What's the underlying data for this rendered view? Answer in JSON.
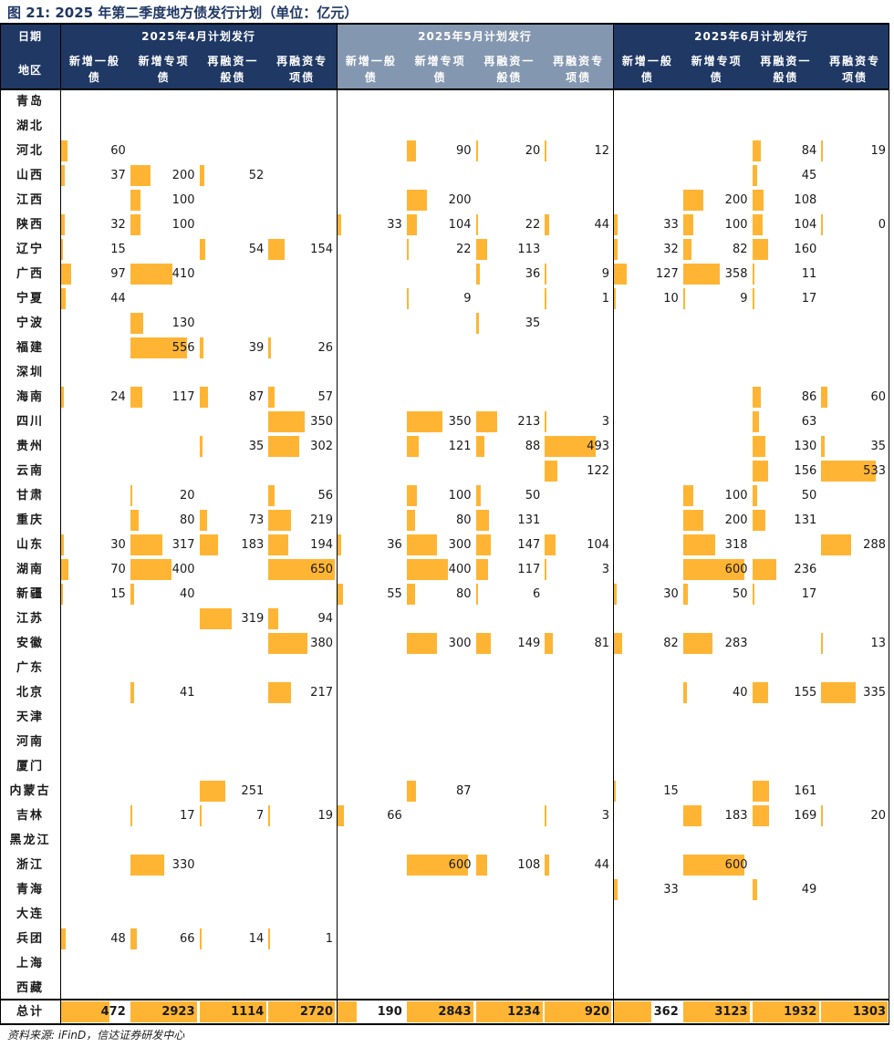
{
  "title": "图 21:  2025 年第二季度地方债发行计划（单位：亿元）",
  "source": "资料来源: iFinD，信达证券研发中心",
  "chart_data": {
    "type": "table",
    "header_date_label": "日期",
    "header_region_label": "地区",
    "total_label": "总计",
    "months": [
      "2025年4月计划发行",
      "2025年5月计划发行",
      "2025年6月计划发行"
    ],
    "highlighted_month": 1,
    "columns": [
      "新增一般债",
      "新增专项债",
      "再融资一般债",
      "再融资专项债"
    ],
    "columns_line1": [
      "新增一般",
      "新增专项",
      "再融资一",
      "再融资专"
    ],
    "columns_line2": [
      "债",
      "债",
      "般债",
      "项债"
    ],
    "regions": [
      "青岛",
      "湖北",
      "河北",
      "山西",
      "江西",
      "陕西",
      "辽宁",
      "广西",
      "宁夏",
      "宁波",
      "福建",
      "深圳",
      "海南",
      "四川",
      "贵州",
      "云南",
      "甘肃",
      "重庆",
      "山东",
      "湖南",
      "新疆",
      "江苏",
      "安徽",
      "广东",
      "北京",
      "天津",
      "河南",
      "厦门",
      "内蒙古",
      "吉林",
      "黑龙江",
      "浙江",
      "青海",
      "大连",
      "兵团",
      "上海",
      "西藏"
    ],
    "rows": [
      [
        null,
        null,
        null,
        null,
        null,
        null,
        null,
        null,
        null,
        null,
        null,
        null
      ],
      [
        null,
        null,
        null,
        null,
        null,
        null,
        null,
        null,
        null,
        null,
        null,
        null
      ],
      [
        60,
        null,
        null,
        null,
        null,
        90,
        20,
        12,
        null,
        null,
        84,
        19
      ],
      [
        37,
        200,
        52,
        null,
        null,
        null,
        null,
        null,
        null,
        null,
        45,
        null
      ],
      [
        null,
        100,
        null,
        null,
        null,
        200,
        null,
        null,
        null,
        200,
        108,
        null
      ],
      [
        32,
        100,
        null,
        null,
        33,
        104,
        22,
        44,
        33,
        100,
        104,
        0
      ],
      [
        15,
        null,
        54,
        154,
        null,
        22,
        113,
        null,
        32,
        82,
        160,
        null
      ],
      [
        97,
        410,
        null,
        null,
        null,
        null,
        36,
        9,
        127,
        358,
        11,
        null
      ],
      [
        44,
        null,
        null,
        null,
        null,
        9,
        null,
        1,
        10,
        9,
        17,
        null
      ],
      [
        null,
        130,
        null,
        null,
        null,
        null,
        35,
        null,
        null,
        null,
        null,
        null
      ],
      [
        null,
        556,
        39,
        26,
        null,
        null,
        null,
        null,
        null,
        null,
        null,
        null
      ],
      [
        null,
        null,
        null,
        null,
        null,
        null,
        null,
        null,
        null,
        null,
        null,
        null
      ],
      [
        24,
        117,
        87,
        57,
        null,
        null,
        null,
        null,
        null,
        null,
        86,
        60
      ],
      [
        null,
        null,
        null,
        350,
        null,
        350,
        213,
        3,
        null,
        null,
        63,
        null
      ],
      [
        null,
        null,
        35,
        302,
        null,
        121,
        88,
        493,
        null,
        null,
        130,
        35
      ],
      [
        null,
        null,
        null,
        null,
        null,
        null,
        null,
        122,
        null,
        null,
        156,
        533
      ],
      [
        null,
        20,
        null,
        56,
        null,
        100,
        50,
        null,
        null,
        100,
        50,
        null
      ],
      [
        null,
        80,
        73,
        219,
        null,
        80,
        131,
        null,
        null,
        200,
        131,
        null
      ],
      [
        30,
        317,
        183,
        194,
        36,
        300,
        147,
        104,
        null,
        318,
        null,
        288
      ],
      [
        70,
        400,
        null,
        650,
        null,
        400,
        117,
        3,
        null,
        600,
        236,
        null
      ],
      [
        15,
        40,
        null,
        null,
        55,
        80,
        6,
        null,
        30,
        50,
        17,
        null
      ],
      [
        null,
        null,
        319,
        94,
        null,
        null,
        null,
        null,
        null,
        null,
        null,
        null
      ],
      [
        null,
        null,
        null,
        380,
        null,
        300,
        149,
        81,
        82,
        283,
        null,
        13
      ],
      [
        null,
        null,
        null,
        null,
        null,
        null,
        null,
        null,
        null,
        null,
        null,
        null
      ],
      [
        null,
        41,
        null,
        217,
        null,
        null,
        null,
        null,
        null,
        40,
        155,
        335
      ],
      [
        null,
        null,
        null,
        null,
        null,
        null,
        null,
        null,
        null,
        null,
        null,
        null
      ],
      [
        null,
        null,
        null,
        null,
        null,
        null,
        null,
        null,
        null,
        null,
        null,
        null
      ],
      [
        null,
        null,
        null,
        null,
        null,
        null,
        null,
        null,
        null,
        null,
        null,
        null
      ],
      [
        null,
        null,
        251,
        null,
        null,
        87,
        null,
        null,
        15,
        null,
        161,
        null
      ],
      [
        null,
        17,
        7,
        19,
        66,
        null,
        null,
        3,
        null,
        183,
        169,
        20
      ],
      [
        null,
        null,
        null,
        null,
        null,
        null,
        null,
        null,
        null,
        null,
        null,
        null
      ],
      [
        null,
        330,
        null,
        null,
        null,
        600,
        108,
        44,
        null,
        600,
        null,
        null
      ],
      [
        null,
        null,
        null,
        null,
        null,
        null,
        null,
        null,
        33,
        null,
        49,
        null
      ],
      [
        null,
        null,
        null,
        null,
        null,
        null,
        null,
        null,
        null,
        null,
        null,
        null
      ],
      [
        48,
        66,
        14,
        1,
        null,
        null,
        null,
        null,
        null,
        null,
        null,
        null
      ],
      [
        null,
        null,
        null,
        null,
        null,
        null,
        null,
        null,
        null,
        null,
        null,
        null
      ],
      [
        null,
        null,
        null,
        null,
        null,
        null,
        null,
        null,
        null,
        null,
        null,
        null
      ]
    ],
    "totals": [
      472,
      2923,
      1114,
      2720,
      190,
      2843,
      1234,
      920,
      362,
      3123,
      1932,
      1303
    ],
    "bar_color": "#ffb533",
    "header_color": "#1f3864",
    "highlight_header_color": "#8497b0",
    "bar_scale_max": 650
  }
}
